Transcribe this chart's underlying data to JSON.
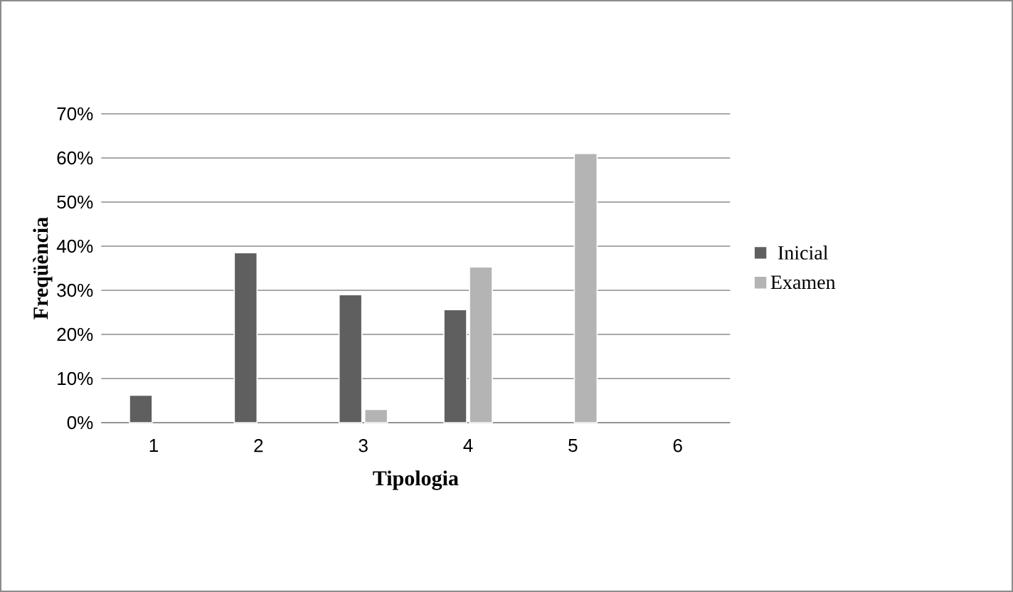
{
  "chart_data": {
    "type": "bar",
    "xlabel": "Tipologia",
    "ylabel": "Freqüència",
    "categories": [
      "1",
      "2",
      "3",
      "4",
      "5",
      "6"
    ],
    "series": [
      {
        "name": "Inicial",
        "color": "#5f5f5f",
        "values": [
          6.2,
          38.5,
          29,
          25.6,
          null,
          null
        ]
      },
      {
        "name": "Examen",
        "color": "#b4b4b4",
        "values": [
          null,
          null,
          3,
          35.3,
          61,
          null
        ]
      }
    ],
    "ylim": [
      0,
      70
    ],
    "yticks": [
      {
        "value": 0,
        "label": "0%"
      },
      {
        "value": 10,
        "label": "10%"
      },
      {
        "value": 20,
        "label": "20%"
      },
      {
        "value": 30,
        "label": "30%"
      },
      {
        "value": 40,
        "label": "40%"
      },
      {
        "value": 50,
        "label": "50%"
      },
      {
        "value": 60,
        "label": "60%"
      },
      {
        "value": 70,
        "label": "70%"
      }
    ],
    "grid": "y",
    "legend": "right"
  }
}
